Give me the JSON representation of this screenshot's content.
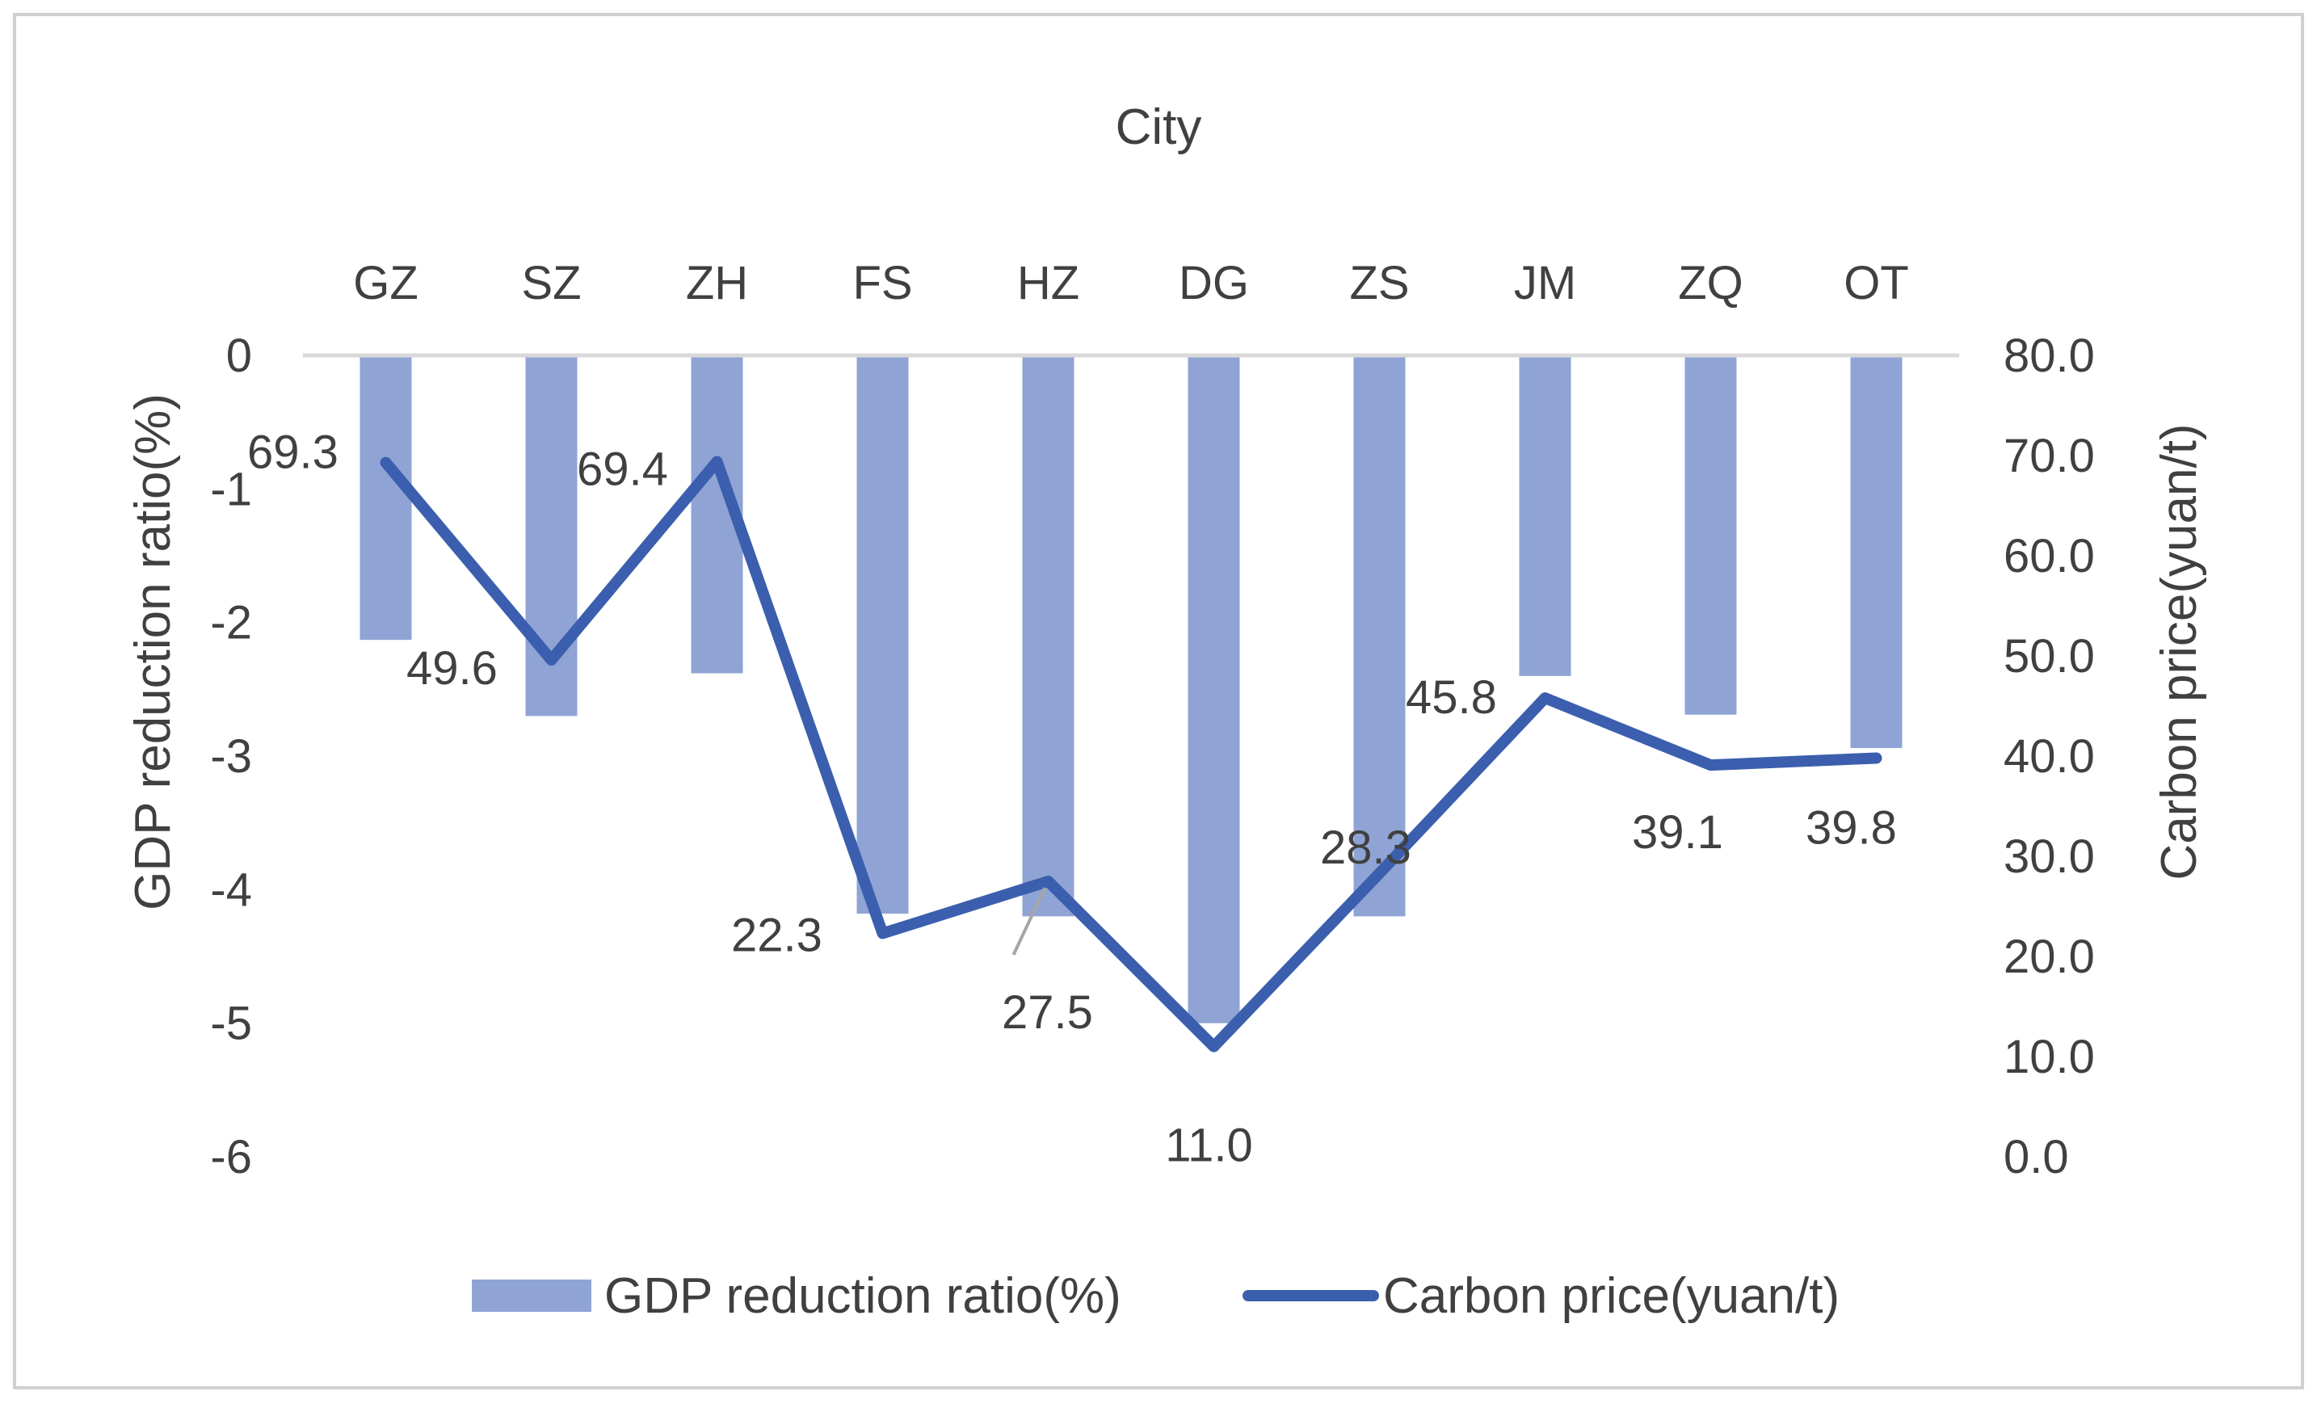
{
  "chart_data": {
    "type": "bar+line",
    "title": "City",
    "categories": [
      "GZ",
      "SZ",
      "ZH",
      "FS",
      "HZ",
      "DG",
      "ZS",
      "JM",
      "ZQ",
      "OT"
    ],
    "series": [
      {
        "name": "GDP reduction ratio(%)",
        "type": "bar",
        "axis": "left",
        "color": "#8FA4D4",
        "values": [
          -2.13,
          -2.7,
          -2.38,
          -4.18,
          -4.2,
          -5.0,
          -4.2,
          -2.4,
          -2.69,
          -2.94
        ]
      },
      {
        "name": "Carbon price(yuan/t)",
        "type": "line",
        "axis": "right",
        "color": "#3B5FAE",
        "values": [
          69.3,
          49.6,
          69.4,
          22.3,
          27.5,
          11.0,
          28.3,
          45.8,
          39.1,
          39.8
        ],
        "labels": [
          "69.3",
          "49.6",
          "69.4",
          "22.3",
          "27.5",
          "11.0",
          "28.3",
          "45.8",
          "39.1",
          "39.8"
        ]
      }
    ],
    "y_left": {
      "label": "GDP reduction ratio(%)",
      "range": [
        -6,
        0
      ],
      "ticks": [
        0,
        -1,
        -2,
        -3,
        -4,
        -5,
        -6
      ],
      "tick_labels": [
        "0",
        "-1",
        "-2",
        "-3",
        "-4",
        "-5",
        "-6"
      ]
    },
    "y_right": {
      "label": "Carbon price(yuan/t)",
      "range": [
        0,
        80
      ],
      "ticks": [
        80,
        70,
        60,
        50,
        40,
        30,
        20,
        10,
        0
      ],
      "tick_labels": [
        "80.0",
        "70.0",
        "60.0",
        "50.0",
        "40.0",
        "30.0",
        "20.0",
        "10.0",
        "0.0"
      ]
    },
    "grid": false,
    "legend_position": "bottom",
    "legend": [
      "GDP reduction ratio(%)",
      "Carbon price(yuan/t)"
    ]
  }
}
